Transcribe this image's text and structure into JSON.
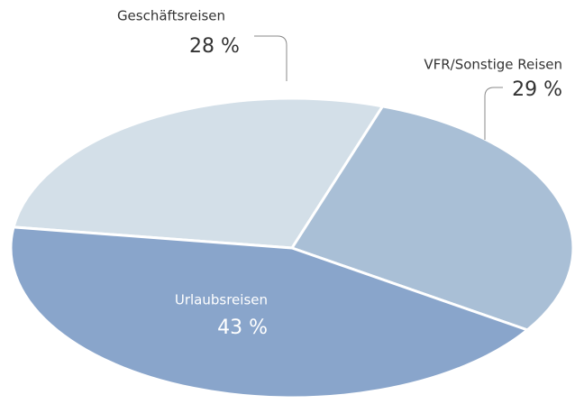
{
  "chart_data": {
    "type": "pie",
    "categories": [
      "Geschäftsreisen",
      "VFR/Sonstige Reisen",
      "Urlaubsreisen"
    ],
    "values": [
      28,
      29,
      43
    ],
    "value_labels": [
      "28 %",
      "29 %",
      "43 %"
    ],
    "colors": [
      "#d3dfe8",
      "#a9bfd6",
      "#89a5cb"
    ]
  }
}
